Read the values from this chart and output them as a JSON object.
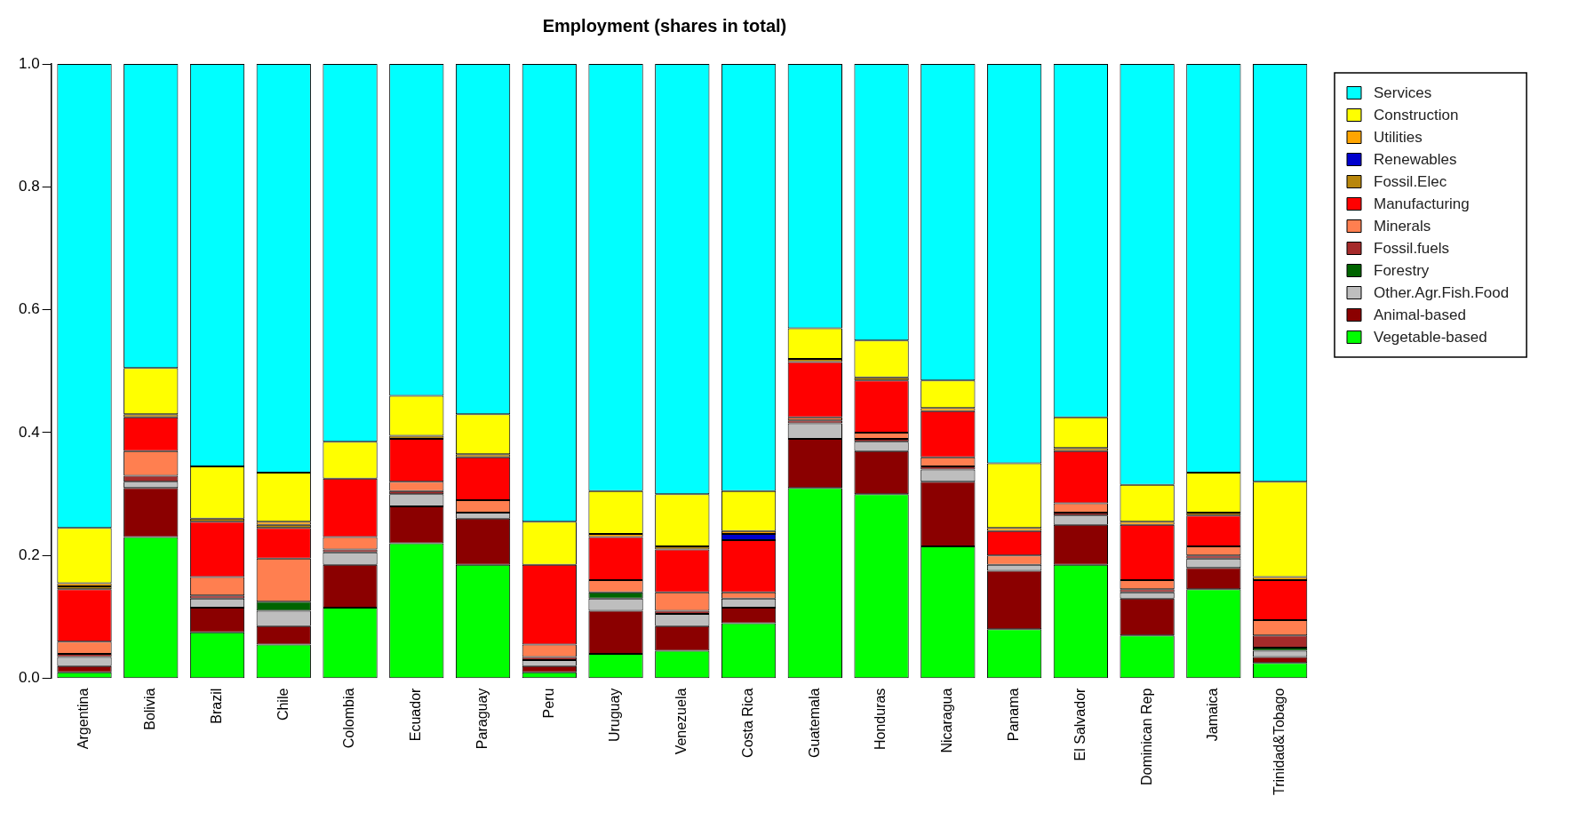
{
  "chart_data": {
    "type": "bar",
    "title": "Employment (shares in total)",
    "stacked": true,
    "legend": "right",
    "ylim": [
      0,
      1
    ],
    "yticks": [
      {
        "value": 0,
        "label": "0.0"
      },
      {
        "value": 0.2,
        "label": "0.2"
      },
      {
        "value": 0.4,
        "label": "0.4"
      },
      {
        "value": 0.6,
        "label": "0.6"
      },
      {
        "value": 0.8,
        "label": "0.8"
      },
      {
        "value": 1,
        "label": "1.0"
      }
    ],
    "categories": [
      "Argentina",
      "Bolivia",
      "Brazil",
      "Chile",
      "Colombia",
      "Ecuador",
      "Paraguay",
      "Peru",
      "Uruguay",
      "Venezuela",
      "Costa Rica",
      "Guatemala",
      "Honduras",
      "Nicaragua",
      "Panama",
      "El Salvador",
      "Dominican Rep",
      "Jamaica",
      "Trinidad&Tobago"
    ],
    "series": [
      {
        "name": "Vegetable-based",
        "color": "#00ff00",
        "values": [
          0.01,
          0.23,
          0.075,
          0.055,
          0.115,
          0.22,
          0.185,
          0.01,
          0.04,
          0.045,
          0.09,
          0.31,
          0.3,
          0.215,
          0.08,
          0.185,
          0.07,
          0.145,
          0.025
        ]
      },
      {
        "name": "Animal-based",
        "color": "#8b0000",
        "values": [
          0.01,
          0.08,
          0.04,
          0.03,
          0.07,
          0.06,
          0.075,
          0.01,
          0.07,
          0.04,
          0.025,
          0.08,
          0.07,
          0.105,
          0.095,
          0.065,
          0.06,
          0.035,
          0.01
        ]
      },
      {
        "name": "Other.Agr.Fish.Food",
        "color": "#bebebe",
        "values": [
          0.015,
          0.01,
          0.015,
          0.025,
          0.02,
          0.02,
          0.01,
          0.01,
          0.02,
          0.02,
          0.015,
          0.025,
          0.015,
          0.02,
          0.01,
          0.015,
          0.01,
          0.015,
          0.01
        ]
      },
      {
        "name": "Forestry",
        "color": "#006400",
        "values": [
          0,
          0,
          0,
          0.015,
          0,
          0,
          0,
          0,
          0.01,
          0,
          0,
          0,
          0,
          0,
          0,
          0,
          0,
          0,
          0.005
        ]
      },
      {
        "name": "Fossil.fuels",
        "color": "#a52a2a",
        "values": [
          0.005,
          0.01,
          0.005,
          0,
          0.005,
          0.005,
          0,
          0.005,
          0,
          0.005,
          0,
          0.005,
          0.005,
          0.005,
          0,
          0.005,
          0.005,
          0.005,
          0.02
        ]
      },
      {
        "name": "Minerals",
        "color": "#ff7f50",
        "values": [
          0.02,
          0.04,
          0.03,
          0.07,
          0.02,
          0.015,
          0.02,
          0.02,
          0.02,
          0.03,
          0.01,
          0.005,
          0.01,
          0.015,
          0.015,
          0.015,
          0.015,
          0.015,
          0.025
        ]
      },
      {
        "name": "Manufacturing",
        "color": "#ff0000",
        "values": [
          0.085,
          0.055,
          0.09,
          0.05,
          0.095,
          0.07,
          0.07,
          0.13,
          0.07,
          0.07,
          0.085,
          0.09,
          0.085,
          0.075,
          0.04,
          0.085,
          0.09,
          0.05,
          0.065
        ]
      },
      {
        "name": "Fossil.Elec",
        "color": "#b8860b",
        "values": [
          0.005,
          0.005,
          0.005,
          0.005,
          0,
          0.005,
          0.005,
          0,
          0,
          0.005,
          0,
          0.005,
          0.005,
          0,
          0,
          0.005,
          0,
          0.005,
          0
        ]
      },
      {
        "name": "Renewables",
        "color": "#0000cd",
        "values": [
          0,
          0,
          0,
          0,
          0,
          0,
          0,
          0,
          0,
          0,
          0.01,
          0,
          0,
          0,
          0,
          0,
          0,
          0,
          0
        ]
      },
      {
        "name": "Utilities",
        "color": "#ffa500",
        "values": [
          0.005,
          0,
          0,
          0.005,
          0,
          0,
          0,
          0,
          0.005,
          0,
          0.005,
          0,
          0,
          0.005,
          0.005,
          0,
          0.005,
          0,
          0.005
        ]
      },
      {
        "name": "Construction",
        "color": "#ffff00",
        "values": [
          0.09,
          0.075,
          0.085,
          0.08,
          0.06,
          0.065,
          0.065,
          0.07,
          0.07,
          0.085,
          0.065,
          0.05,
          0.06,
          0.045,
          0.105,
          0.05,
          0.06,
          0.065,
          0.155
        ]
      },
      {
        "name": "Services",
        "color": "#00ffff",
        "values": [
          0.755,
          0.495,
          0.655,
          0.665,
          0.615,
          0.54,
          0.57,
          0.745,
          0.695,
          0.7,
          0.695,
          0.43,
          0.45,
          0.515,
          0.65,
          0.575,
          0.685,
          0.665,
          0.68
        ]
      }
    ]
  }
}
